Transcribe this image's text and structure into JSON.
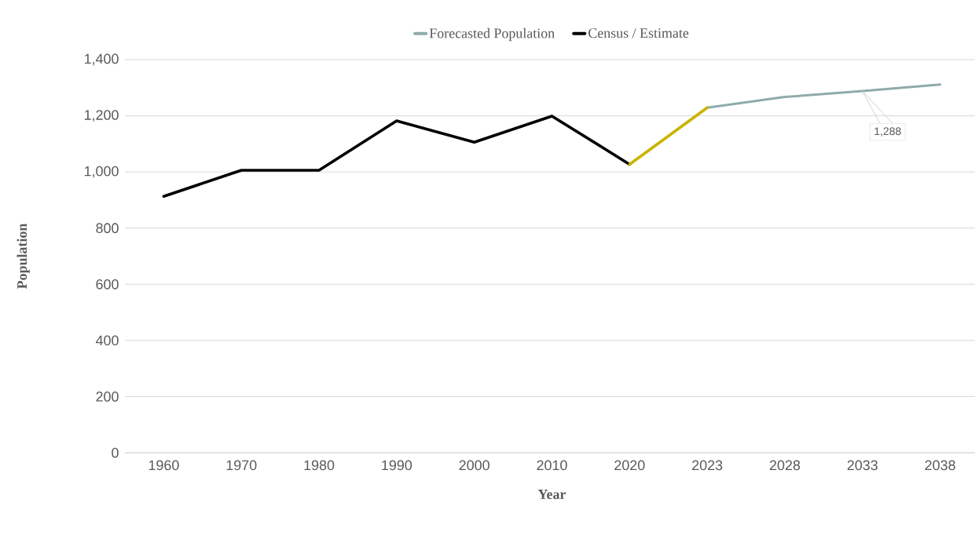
{
  "chart_data": {
    "type": "line",
    "xlabel": "Year",
    "ylabel": "Population",
    "categories": [
      "1960",
      "1970",
      "1980",
      "1990",
      "2000",
      "2010",
      "2020",
      "2023",
      "2028",
      "2033",
      "2038"
    ],
    "series": [
      {
        "name": "Forecasted Population",
        "color": "#8fabab",
        "values": [
          null,
          null,
          null,
          null,
          null,
          null,
          null,
          1229,
          1267,
          1288,
          1311
        ]
      },
      {
        "name": "Census / Estimate",
        "color": "#000000",
        "values": [
          913,
          1006,
          1006,
          1182,
          1106,
          1199,
          1027,
          null,
          null,
          null,
          null
        ]
      },
      {
        "color": "#c9b400",
        "values": [
          null,
          null,
          null,
          null,
          null,
          null,
          1027,
          1229,
          null,
          null,
          null
        ]
      }
    ],
    "ylim": [
      0,
      1400
    ],
    "yticks": [
      0,
      200,
      400,
      600,
      800,
      {
        "value": 1000,
        "label": "1,000"
      },
      {
        "value": 1200,
        "label": "1,200"
      },
      {
        "value": 1400,
        "label": "1,400"
      }
    ],
    "grid": "y",
    "legend": "top",
    "marker": "none",
    "line_style": "solid",
    "annotations": [
      {
        "text": "1,288",
        "x": "2033",
        "y": 1288
      }
    ]
  }
}
